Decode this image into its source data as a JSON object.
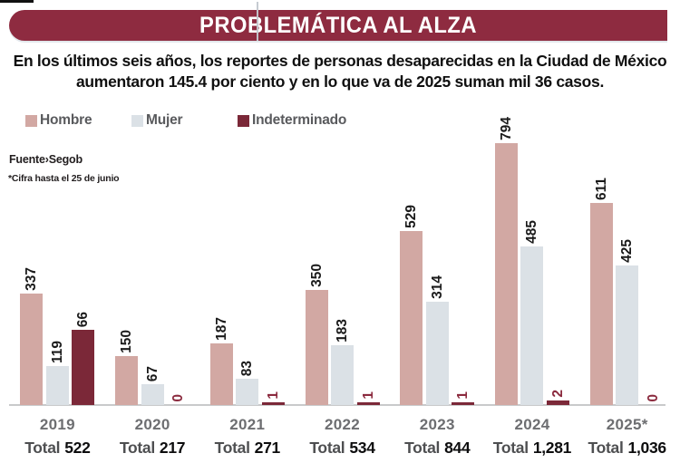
{
  "header": {
    "title": "PROBLEMÁTICA AL ALZA"
  },
  "subtitle": {
    "line1": "En los últimos seis años, los reportes de personas desaparecidas en la Ciudad de México",
    "line2": "aumentaron 145.4 por ciento y en lo que va de 2025 suman mil 36 casos."
  },
  "legend": {
    "items": [
      {
        "label": "Hombre",
        "color": "#d2a8a3"
      },
      {
        "label": "Mujer",
        "color": "#dbe1e6"
      },
      {
        "label": "Indeterminado",
        "color": "#7b2838"
      }
    ]
  },
  "source": {
    "fuente": "Fuente›Segob",
    "note": "*Cifra hasta el 25 de junio"
  },
  "colors": {
    "banner": "#8e2b40",
    "hombre": "#d2a8a3",
    "mujer": "#dbe1e6",
    "indeterminado": "#7b2838",
    "accent_label": "#8b2a3e",
    "axis": "#c9cacb"
  },
  "chart_data": {
    "type": "bar",
    "title": "PROBLEMÁTICA AL ALZA",
    "xlabel": "",
    "ylabel": "",
    "grid": false,
    "legend_position": "top-left",
    "categories": [
      "2019",
      "2020",
      "2021",
      "2022",
      "2023",
      "2024",
      "2025*"
    ],
    "series": [
      {
        "name": "Hombre",
        "color": "#d2a8a3",
        "values": [
          337,
          150,
          187,
          350,
          529,
          794,
          611
        ],
        "display_heights": [
          123,
          54,
          68,
          127,
          192,
          289,
          223
        ],
        "label_styles": [
          "dark",
          "dark",
          "dark",
          "dark",
          "dark",
          "dark",
          "dark"
        ]
      },
      {
        "name": "Mujer",
        "color": "#dbe1e6",
        "values": [
          119,
          67,
          83,
          183,
          314,
          485,
          425
        ],
        "display_heights": [
          43,
          23,
          29,
          66,
          114,
          175,
          154
        ],
        "label_styles": [
          "dark",
          "dark",
          "dark",
          "dark",
          "dark",
          "dark",
          "dark"
        ]
      },
      {
        "name": "Indeterminado",
        "color": "#7b2838",
        "values": [
          66,
          0,
          1,
          1,
          1,
          2,
          0
        ],
        "display_heights": [
          83,
          0,
          3,
          3,
          3,
          5,
          0
        ],
        "label_styles": [
          "dark",
          "accent",
          "accent",
          "accent",
          "accent",
          "accent",
          "accent"
        ]
      }
    ],
    "totals_label": "Total",
    "totals": [
      "522",
      "217",
      "271",
      "534",
      "844",
      "1,281",
      "1,036"
    ]
  }
}
